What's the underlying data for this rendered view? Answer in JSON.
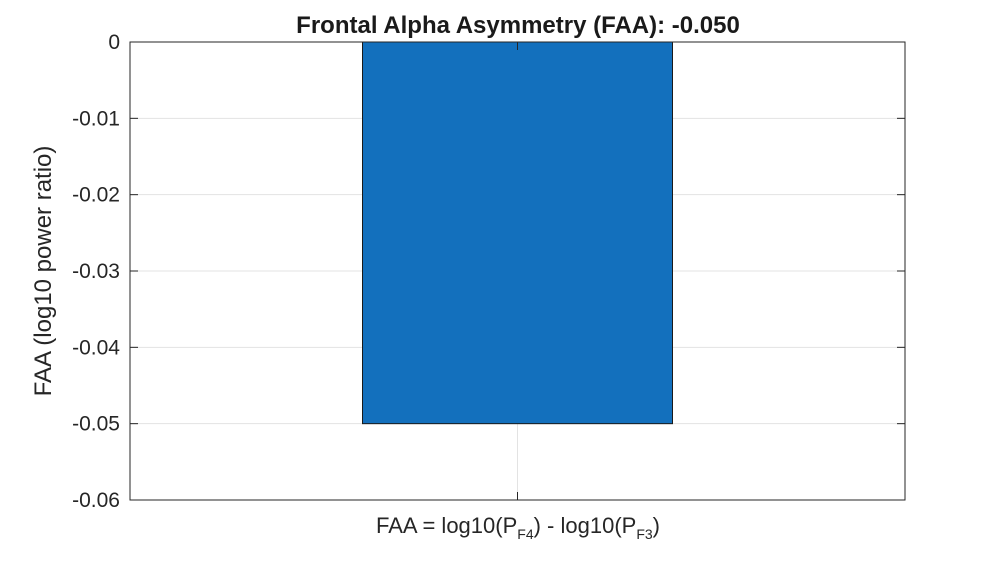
{
  "chart_data": {
    "type": "bar",
    "title": "Frontal Alpha Asymmetry (FAA): -0.050",
    "ylabel": "FAA (log10 power ratio)",
    "xlabel": {
      "prefix": "FAA  =  log10(P",
      "sub1": "F4",
      "middle": ")  -  log10(P",
      "sub2": "F3",
      "suffix": ")"
    },
    "categories": [
      ""
    ],
    "values": [
      -0.05
    ],
    "ylim": [
      -0.06,
      0
    ],
    "yticks": [
      0,
      -0.01,
      -0.02,
      -0.03,
      -0.04,
      -0.05,
      -0.06
    ],
    "ytick_labels": [
      "0",
      "-0.01",
      "-0.02",
      "-0.03",
      "-0.04",
      "-0.05",
      "-0.06"
    ],
    "grid": true,
    "bar_color": "#1370BD",
    "bar_edge_color": "#1a1a1a"
  }
}
